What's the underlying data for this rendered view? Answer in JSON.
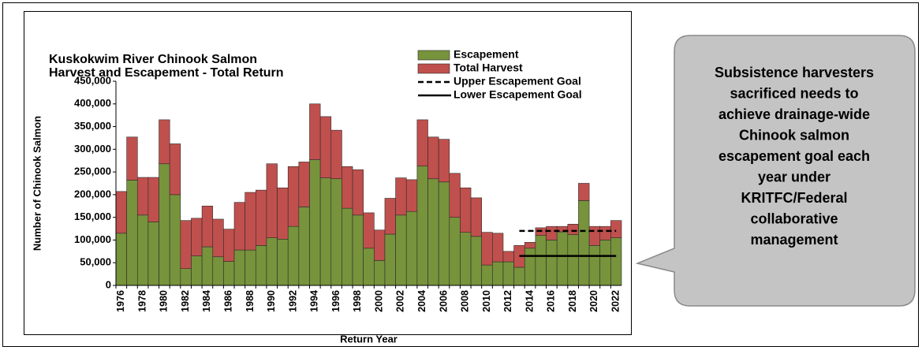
{
  "chart_data": {
    "type": "bar",
    "stacked": true,
    "title": [
      "Kuskokwim River Chinook Salmon",
      "Harvest and Escapement - Total Return"
    ],
    "x_label": "Return Year",
    "y_label": "Number of Chinook Salmon",
    "categories": [
      "1976",
      null,
      "1978",
      null,
      "1980",
      null,
      "1982",
      null,
      "1984",
      null,
      "1986",
      null,
      "1988",
      null,
      "1990",
      null,
      "1992",
      null,
      "1994",
      null,
      "1996",
      null,
      "1998",
      null,
      "2000",
      null,
      "2002",
      null,
      "2004",
      null,
      "2006",
      null,
      "2008",
      null,
      "2010",
      null,
      "2012",
      null,
      "2014",
      null,
      "2016",
      null,
      "2018",
      null,
      "2020",
      null,
      "2022"
    ],
    "series": [
      {
        "name": "Escapement",
        "color": "#77933c",
        "values": [
          115000,
          232000,
          155000,
          140000,
          268000,
          200000,
          37000,
          65000,
          85000,
          63000,
          53000,
          78000,
          78000,
          88000,
          105000,
          102000,
          130000,
          173000,
          277000,
          237000,
          235000,
          170000,
          155000,
          82000,
          55000,
          113000,
          155000,
          163000,
          263000,
          235000,
          228000,
          150000,
          117000,
          108000,
          45000,
          52000,
          52000,
          40000,
          82000,
          110000,
          100000,
          118000,
          112000,
          187000,
          88000,
          100000,
          105000
        ]
      },
      {
        "name": "Total Harvest",
        "color": "#c0504d",
        "values": [
          92000,
          95000,
          83000,
          98000,
          97000,
          112000,
          106000,
          83000,
          90000,
          83000,
          71000,
          105000,
          127000,
          122000,
          163000,
          113000,
          132000,
          99000,
          123000,
          135000,
          107000,
          92000,
          100000,
          78000,
          67000,
          79000,
          82000,
          70000,
          102000,
          92000,
          94000,
          97000,
          98000,
          85000,
          72000,
          63000,
          23000,
          48000,
          13000,
          17000,
          30000,
          12000,
          23000,
          38000,
          42000,
          30000,
          38000
        ]
      },
      {
        "name": "Upper Escapement Goal",
        "type": "line",
        "dashed": true,
        "color": "#000000",
        "values": [
          null,
          null,
          null,
          null,
          null,
          null,
          null,
          null,
          null,
          null,
          null,
          null,
          null,
          null,
          null,
          null,
          null,
          null,
          null,
          null,
          null,
          null,
          null,
          null,
          null,
          null,
          null,
          null,
          null,
          null,
          null,
          null,
          null,
          null,
          null,
          null,
          null,
          120000,
          120000,
          120000,
          120000,
          120000,
          120000,
          120000,
          120000,
          120000,
          120000
        ]
      },
      {
        "name": "Lower Escapement Goal",
        "type": "line",
        "dashed": false,
        "color": "#000000",
        "values": [
          null,
          null,
          null,
          null,
          null,
          null,
          null,
          null,
          null,
          null,
          null,
          null,
          null,
          null,
          null,
          null,
          null,
          null,
          null,
          null,
          null,
          null,
          null,
          null,
          null,
          null,
          null,
          null,
          null,
          null,
          null,
          null,
          null,
          null,
          null,
          null,
          null,
          65000,
          65000,
          65000,
          65000,
          65000,
          65000,
          65000,
          65000,
          65000,
          65000
        ]
      }
    ],
    "ylim": [
      0,
      450000
    ],
    "yticks": [
      0,
      {
        "value": 50000,
        "label": "50,000"
      },
      {
        "value": 100000,
        "label": "100,000"
      },
      {
        "value": 150000,
        "label": "150,000"
      },
      {
        "value": 200000,
        "label": "200,000"
      },
      {
        "value": 250000,
        "label": "250,000"
      },
      {
        "value": 300000,
        "label": "300,000"
      },
      {
        "value": 350000,
        "label": "350,000"
      },
      {
        "value": 400000,
        "label": "400,000"
      },
      {
        "value": 450000,
        "label": "450,000"
      }
    ],
    "grid": false
  },
  "callout": {
    "lines": [
      "Subsistence harvesters",
      "sacrificed needs to",
      "achieve drainage-wide",
      "Chinook salmon",
      "escapement goal each",
      "year under",
      "KRITFC/Federal",
      "collaborative",
      "management"
    ]
  }
}
